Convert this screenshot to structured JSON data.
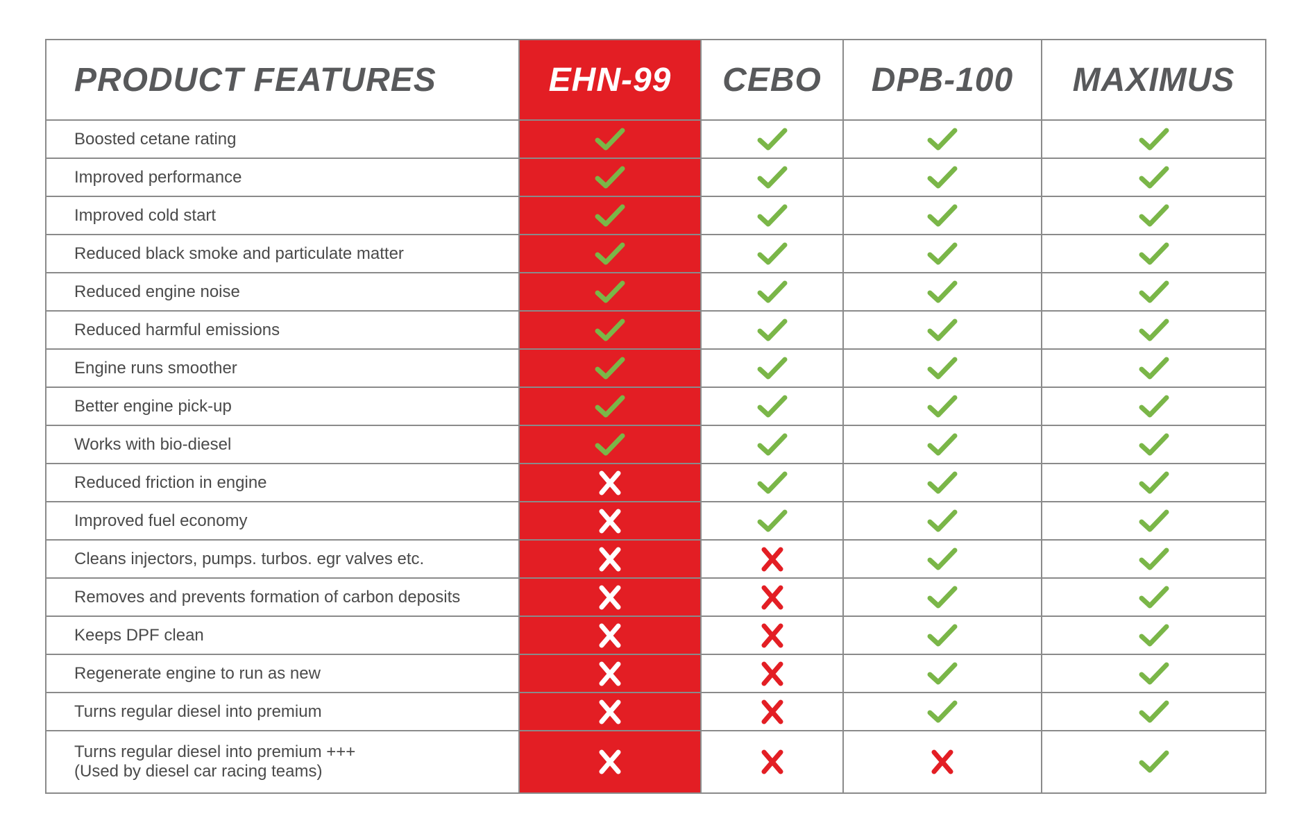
{
  "header": {
    "features_label": "PRODUCT FEATURES",
    "products": [
      "EHN-99",
      "CEBO",
      "DPB-100",
      "MAXIMUS"
    ]
  },
  "colors": {
    "highlight": "#e31e24",
    "check": "#7ab648",
    "cross_on_white": "#e31e24",
    "cross_on_red": "#ffffff",
    "header_text": "#58595b"
  },
  "icons": {
    "yes": "check-icon",
    "no": "cross-icon"
  },
  "rows": [
    {
      "feature": "Boosted cetane rating",
      "marks": [
        true,
        true,
        true,
        true
      ]
    },
    {
      "feature": "Improved performance",
      "marks": [
        true,
        true,
        true,
        true
      ]
    },
    {
      "feature": "Improved cold start",
      "marks": [
        true,
        true,
        true,
        true
      ]
    },
    {
      "feature": "Reduced black smoke and particulate matter",
      "marks": [
        true,
        true,
        true,
        true
      ]
    },
    {
      "feature": "Reduced engine noise",
      "marks": [
        true,
        true,
        true,
        true
      ]
    },
    {
      "feature": "Reduced harmful emissions",
      "marks": [
        true,
        true,
        true,
        true
      ]
    },
    {
      "feature": "Engine runs smoother",
      "marks": [
        true,
        true,
        true,
        true
      ]
    },
    {
      "feature": "Better engine pick-up",
      "marks": [
        true,
        true,
        true,
        true
      ]
    },
    {
      "feature": "Works with bio-diesel",
      "marks": [
        true,
        true,
        true,
        true
      ]
    },
    {
      "feature": "Reduced friction in engine",
      "marks": [
        false,
        true,
        true,
        true
      ]
    },
    {
      "feature": "Improved fuel economy",
      "marks": [
        false,
        true,
        true,
        true
      ]
    },
    {
      "feature": "Cleans injectors, pumps. turbos. egr valves etc.",
      "marks": [
        false,
        false,
        true,
        true
      ]
    },
    {
      "feature": "Removes and prevents formation of carbon deposits",
      "marks": [
        false,
        false,
        true,
        true
      ]
    },
    {
      "feature": "Keeps DPF clean",
      "marks": [
        false,
        false,
        true,
        true
      ]
    },
    {
      "feature": "Regenerate engine to run as new",
      "marks": [
        false,
        false,
        true,
        true
      ]
    },
    {
      "feature": "Turns regular diesel into premium",
      "marks": [
        false,
        false,
        true,
        true
      ]
    },
    {
      "feature": "Turns regular diesel into premium +++",
      "feature_line2": "(Used by diesel car racing teams)",
      "marks": [
        false,
        false,
        false,
        true
      ]
    }
  ]
}
